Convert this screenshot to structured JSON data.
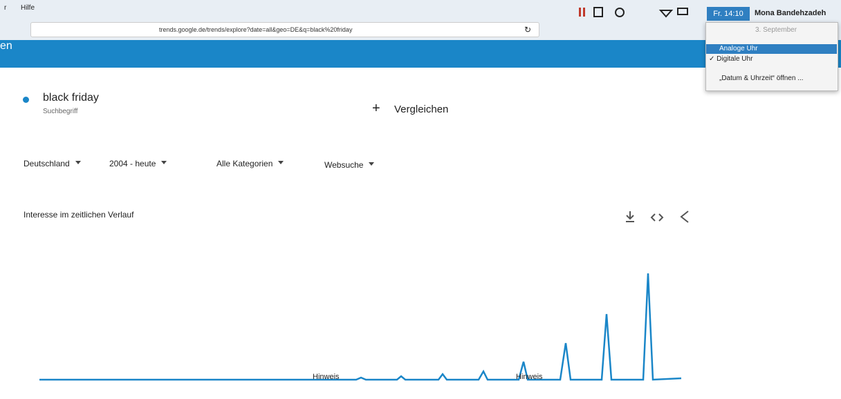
{
  "menubar": {
    "menus": [
      "r",
      "Hilfe"
    ],
    "clock": "Fr. 14:10",
    "user": "Mona Bandehzadeh"
  },
  "address_bar": {
    "url": "trends.google.de/trends/explore?date=all&geo=DE&q=black%20friday"
  },
  "clock_menu": {
    "date": "3. September",
    "items": [
      "Analoge Uhr",
      "✓ Digitale Uhr",
      "„Datum & Uhrzeit“ öffnen ..."
    ]
  },
  "header": {
    "title": "en"
  },
  "search_term": {
    "name": "black friday",
    "type": "Suchbegriff"
  },
  "compare": {
    "label": "Vergleichen"
  },
  "filters": [
    "Deutschland",
    "2004 - heute",
    "Alle Kategorien",
    "Websuche"
  ],
  "section": {
    "title": "Interesse im zeitlichen Verlauf",
    "notes": [
      "Hinweis",
      "Hinweis"
    ]
  }
}
